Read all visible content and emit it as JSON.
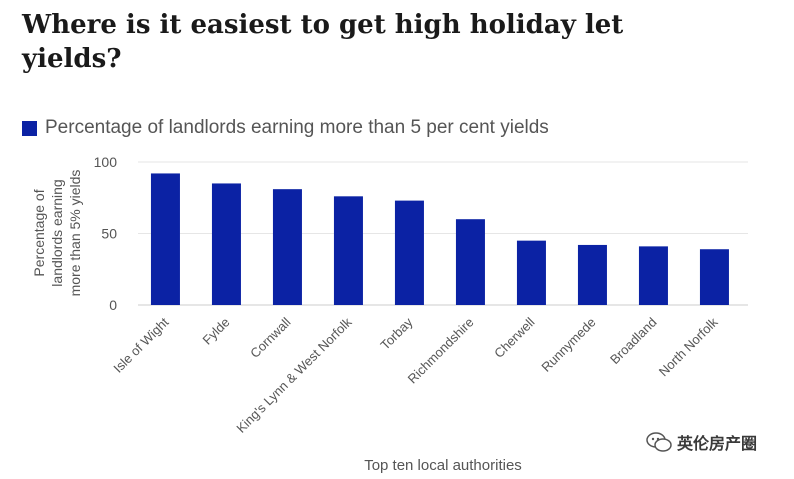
{
  "title": "Where is it easiest to get high holiday let yields?",
  "watermark": "英伦房产圈",
  "colors": {
    "bar": "#0b22a4",
    "grid": "#e6e6e6",
    "axis": "#cccccc",
    "text": "#555555"
  },
  "chart_data": {
    "type": "bar",
    "categories": [
      "Isle of Wight",
      "Fylde",
      "Cornwall",
      "King's Lynn & West Norfolk",
      "Torbay",
      "Richmondshire",
      "Cherwell",
      "Runnymede",
      "Broadland",
      "North Norfolk"
    ],
    "series": [
      {
        "name": "Percentage of landlords earning more than 5 per cent yields",
        "values": [
          92,
          85,
          81,
          76,
          73,
          60,
          45,
          42,
          41,
          39
        ]
      }
    ],
    "xlabel": "Top ten local authorities",
    "ylabel": [
      "Percentage of",
      "landlords earning",
      "more than 5% yields"
    ],
    "ylim": [
      0,
      100
    ],
    "yticks": [
      0,
      50,
      100
    ],
    "grid": true,
    "legend_position": "top-left"
  }
}
